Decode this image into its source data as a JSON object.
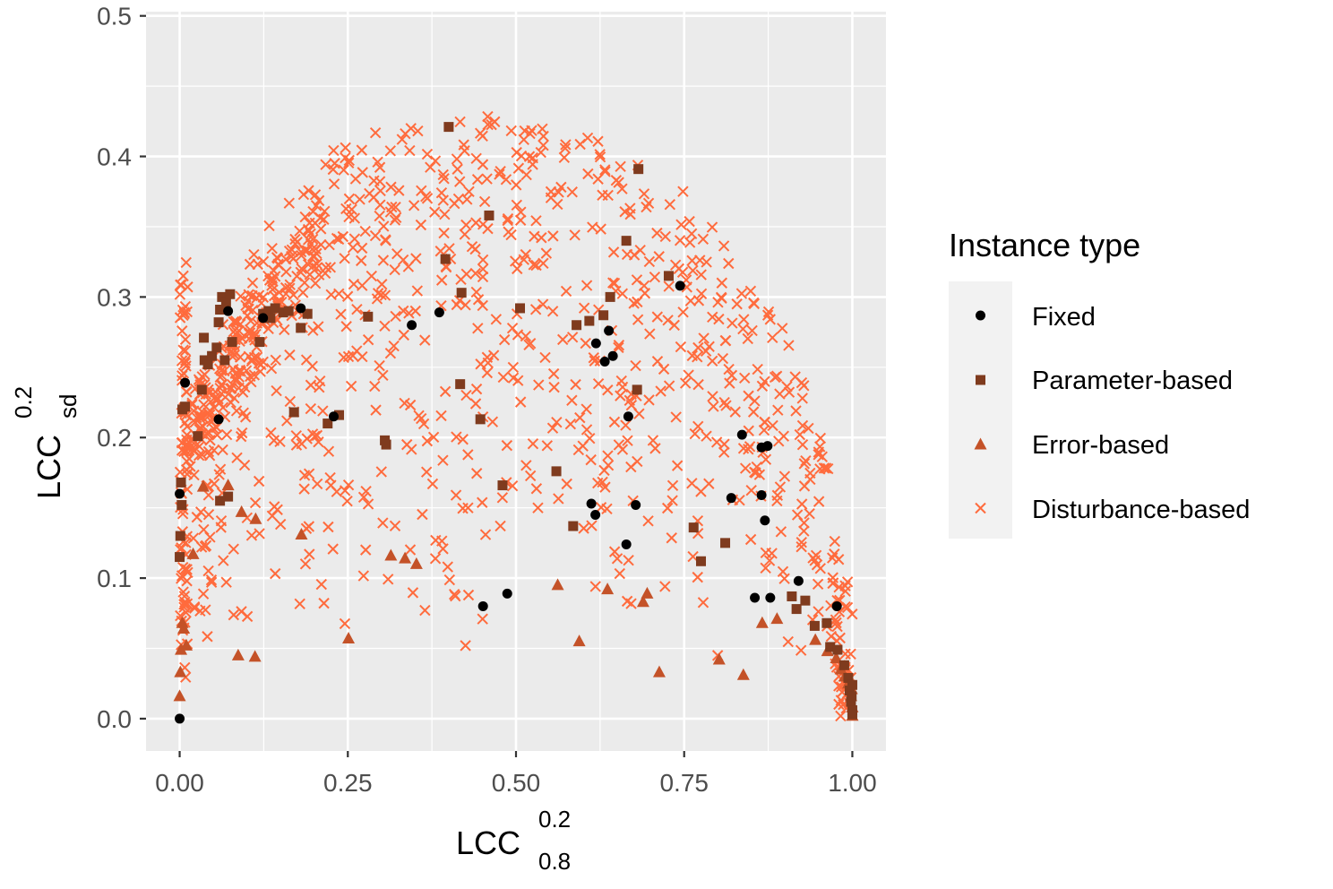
{
  "chart_data": {
    "type": "scatter",
    "xlabel": {
      "base": "LCC",
      "sup": "0.2",
      "sub": "0.8"
    },
    "ylabel": {
      "base": "LCC",
      "sup": "0.2",
      "sub": "sd"
    },
    "xlim": [
      -0.05,
      1.05
    ],
    "ylim": [
      -0.023,
      0.503
    ],
    "x_ticks": [
      0.0,
      0.25,
      0.5,
      0.75,
      1.0
    ],
    "x_tick_labels": [
      "0.00",
      "0.25",
      "0.50",
      "0.75",
      "1.00"
    ],
    "y_ticks": [
      0.0,
      0.1,
      0.2,
      0.3,
      0.4,
      0.5
    ],
    "y_tick_labels": [
      "0.0",
      "0.1",
      "0.2",
      "0.3",
      "0.4",
      "0.5"
    ],
    "grid": true,
    "panel_background": "#ebebeb",
    "grid_color": "#ffffff",
    "legend": {
      "title": "Instance type",
      "position": "right",
      "entries": [
        {
          "name": "Fixed",
          "shape": "circle",
          "color": "#000000"
        },
        {
          "name": "Parameter-based",
          "shape": "square",
          "color": "#7f3b1e"
        },
        {
          "name": "Error-based",
          "shape": "triangle",
          "color": "#c45228"
        },
        {
          "name": "Disturbance-based",
          "shape": "cross",
          "color": "#ff6b3d"
        }
      ]
    },
    "series": [
      {
        "name": "Fixed",
        "shape": "circle",
        "color": "#000000",
        "points": [
          [
            0.0,
            0.0
          ],
          [
            0.0,
            0.16
          ],
          [
            0.008,
            0.239
          ],
          [
            0.058,
            0.213
          ],
          [
            0.072,
            0.29
          ],
          [
            0.124,
            0.285
          ],
          [
            0.18,
            0.292
          ],
          [
            0.229,
            0.215
          ],
          [
            0.345,
            0.28
          ],
          [
            0.386,
            0.289
          ],
          [
            0.451,
            0.08
          ],
          [
            0.487,
            0.089
          ],
          [
            0.612,
            0.153
          ],
          [
            0.618,
            0.145
          ],
          [
            0.619,
            0.267
          ],
          [
            0.632,
            0.254
          ],
          [
            0.638,
            0.276
          ],
          [
            0.644,
            0.258
          ],
          [
            0.664,
            0.124
          ],
          [
            0.667,
            0.215
          ],
          [
            0.678,
            0.152
          ],
          [
            0.744,
            0.308
          ],
          [
            0.82,
            0.157
          ],
          [
            0.836,
            0.202
          ],
          [
            0.855,
            0.086
          ],
          [
            0.865,
            0.193
          ],
          [
            0.865,
            0.159
          ],
          [
            0.87,
            0.141
          ],
          [
            0.874,
            0.194
          ],
          [
            0.878,
            0.086
          ],
          [
            0.92,
            0.098
          ],
          [
            0.977,
            0.08
          ]
        ]
      },
      {
        "name": "Parameter-based",
        "shape": "square",
        "color": "#7f3b1e",
        "points": [
          [
            0.0,
            0.115
          ],
          [
            0.001,
            0.13
          ],
          [
            0.003,
            0.152
          ],
          [
            0.002,
            0.168
          ],
          [
            0.004,
            0.22
          ],
          [
            0.008,
            0.222
          ],
          [
            0.027,
            0.201
          ],
          [
            0.033,
            0.234
          ],
          [
            0.036,
            0.271
          ],
          [
            0.037,
            0.255
          ],
          [
            0.042,
            0.252
          ],
          [
            0.048,
            0.258
          ],
          [
            0.055,
            0.264
          ],
          [
            0.058,
            0.282
          ],
          [
            0.06,
            0.291
          ],
          [
            0.063,
            0.3
          ],
          [
            0.067,
            0.255
          ],
          [
            0.069,
            0.296
          ],
          [
            0.072,
            0.158
          ],
          [
            0.075,
            0.302
          ],
          [
            0.078,
            0.268
          ],
          [
            0.06,
            0.155
          ],
          [
            0.119,
            0.268
          ],
          [
            0.124,
            0.288
          ],
          [
            0.132,
            0.29
          ],
          [
            0.135,
            0.285
          ],
          [
            0.142,
            0.292
          ],
          [
            0.154,
            0.289
          ],
          [
            0.162,
            0.29
          ],
          [
            0.17,
            0.218
          ],
          [
            0.18,
            0.278
          ],
          [
            0.19,
            0.288
          ],
          [
            0.22,
            0.21
          ],
          [
            0.237,
            0.216
          ],
          [
            0.28,
            0.286
          ],
          [
            0.305,
            0.198
          ],
          [
            0.307,
            0.195
          ],
          [
            0.395,
            0.327
          ],
          [
            0.4,
            0.421
          ],
          [
            0.417,
            0.238
          ],
          [
            0.419,
            0.303
          ],
          [
            0.447,
            0.213
          ],
          [
            0.46,
            0.358
          ],
          [
            0.48,
            0.166
          ],
          [
            0.506,
            0.292
          ],
          [
            0.56,
            0.176
          ],
          [
            0.585,
            0.137
          ],
          [
            0.59,
            0.28
          ],
          [
            0.609,
            0.283
          ],
          [
            0.63,
            0.287
          ],
          [
            0.64,
            0.3
          ],
          [
            0.664,
            0.34
          ],
          [
            0.68,
            0.234
          ],
          [
            0.682,
            0.391
          ],
          [
            0.727,
            0.315
          ],
          [
            0.764,
            0.136
          ],
          [
            0.775,
            0.112
          ],
          [
            0.811,
            0.125
          ],
          [
            0.91,
            0.087
          ],
          [
            0.917,
            0.078
          ],
          [
            0.93,
            0.084
          ],
          [
            0.944,
            0.066
          ],
          [
            0.962,
            0.068
          ],
          [
            0.967,
            0.051
          ],
          [
            0.978,
            0.049
          ],
          [
            0.988,
            0.038
          ],
          [
            0.994,
            0.029
          ],
          [
            0.996,
            0.02
          ],
          [
            0.998,
            0.012
          ],
          [
            1.0,
            0.006
          ],
          [
            1.0,
            0.003
          ],
          [
            0.999,
            0.016
          ],
          [
            1.0,
            0.024
          ]
        ]
      },
      {
        "name": "Error-based",
        "shape": "triangle",
        "color": "#c45228",
        "points": [
          [
            0.0,
            0.016
          ],
          [
            0.001,
            0.033
          ],
          [
            0.002,
            0.049
          ],
          [
            0.004,
            0.068
          ],
          [
            0.006,
            0.064
          ],
          [
            0.01,
            0.052
          ],
          [
            0.02,
            0.117
          ],
          [
            0.035,
            0.165
          ],
          [
            0.072,
            0.166
          ],
          [
            0.087,
            0.045
          ],
          [
            0.092,
            0.147
          ],
          [
            0.112,
            0.044
          ],
          [
            0.113,
            0.142
          ],
          [
            0.181,
            0.131
          ],
          [
            0.251,
            0.057
          ],
          [
            0.314,
            0.116
          ],
          [
            0.335,
            0.114
          ],
          [
            0.352,
            0.11
          ],
          [
            0.562,
            0.095
          ],
          [
            0.594,
            0.055
          ],
          [
            0.636,
            0.092
          ],
          [
            0.689,
            0.083
          ],
          [
            0.695,
            0.089
          ],
          [
            0.713,
            0.033
          ],
          [
            0.802,
            0.042
          ],
          [
            0.838,
            0.031
          ],
          [
            0.866,
            0.068
          ],
          [
            0.888,
            0.071
          ],
          [
            0.945,
            0.056
          ],
          [
            0.963,
            0.048
          ],
          [
            0.976,
            0.043
          ],
          [
            0.983,
            0.035
          ],
          [
            0.989,
            0.03
          ],
          [
            0.994,
            0.025
          ],
          [
            0.998,
            0.016
          ],
          [
            1.0,
            0.008
          ],
          [
            1.0,
            0.002
          ],
          [
            0.999,
            0.021
          ]
        ]
      },
      {
        "name": "Disturbance-based",
        "shape": "cross",
        "color": "#ff6b3d",
        "generated": true,
        "count": 1100
      }
    ]
  }
}
